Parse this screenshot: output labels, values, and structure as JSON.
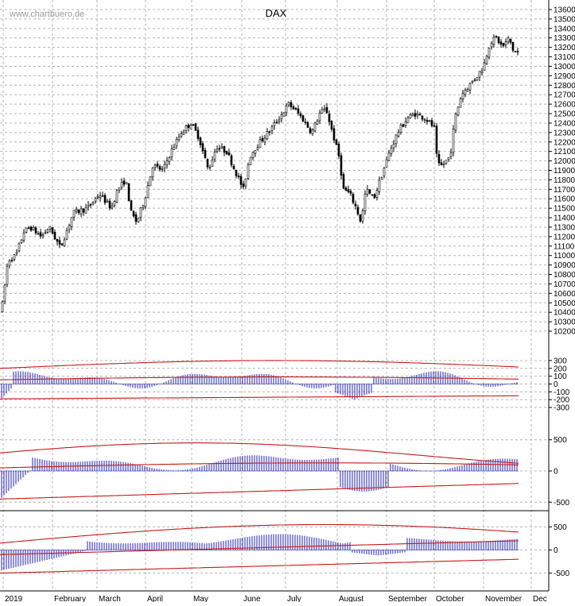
{
  "watermark": "www.chartbuero.de",
  "chart_data": [
    {
      "type": "candlestick",
      "title": "DAX",
      "ylim": [
        10200,
        13600
      ],
      "yticks": [
        10200,
        10300,
        10400,
        10500,
        10600,
        10700,
        10800,
        10900,
        11000,
        11100,
        11200,
        11300,
        11400,
        11500,
        11600,
        11700,
        11800,
        11900,
        12000,
        12100,
        12200,
        12300,
        12400,
        12500,
        12600,
        12700,
        12800,
        12900,
        13000,
        13100,
        13200,
        13300,
        13400,
        13500,
        13600
      ],
      "x_labels": [
        "2019",
        "February",
        "March",
        "April",
        "May",
        "June",
        "July",
        "August",
        "September",
        "October",
        "November",
        "Dec"
      ],
      "grid": true,
      "closes_approx": [
        {
          "month": "2019",
          "value": 10450
        },
        {
          "month": "January end",
          "value": 11200
        },
        {
          "month": "February end",
          "value": 11500
        },
        {
          "month": "March end",
          "value": 11550
        },
        {
          "month": "April end",
          "value": 12300
        },
        {
          "month": "May end",
          "value": 11800
        },
        {
          "month": "June end",
          "value": 12350
        },
        {
          "month": "July end",
          "value": 12200
        },
        {
          "month": "August end",
          "value": 11900
        },
        {
          "month": "September end",
          "value": 12400
        },
        {
          "month": "October end",
          "value": 12850
        },
        {
          "month": "November",
          "value": 13200
        }
      ]
    },
    {
      "type": "histogram",
      "yticks": [
        300,
        200,
        100,
        0,
        -100,
        -200,
        -300
      ],
      "ylim": [
        -330,
        340
      ],
      "bands": [
        "upper",
        "middle",
        "lower"
      ]
    },
    {
      "type": "histogram",
      "yticks": [
        500,
        0,
        -500
      ],
      "ylim": [
        -560,
        560
      ]
    },
    {
      "type": "histogram",
      "yticks": [
        500,
        0,
        -500
      ],
      "ylim": [
        -610,
        610
      ]
    }
  ],
  "colors": {
    "candles": "#000000",
    "histogram": "#2020b0",
    "bands": "#c81818",
    "grid": "#b4b4b4"
  }
}
